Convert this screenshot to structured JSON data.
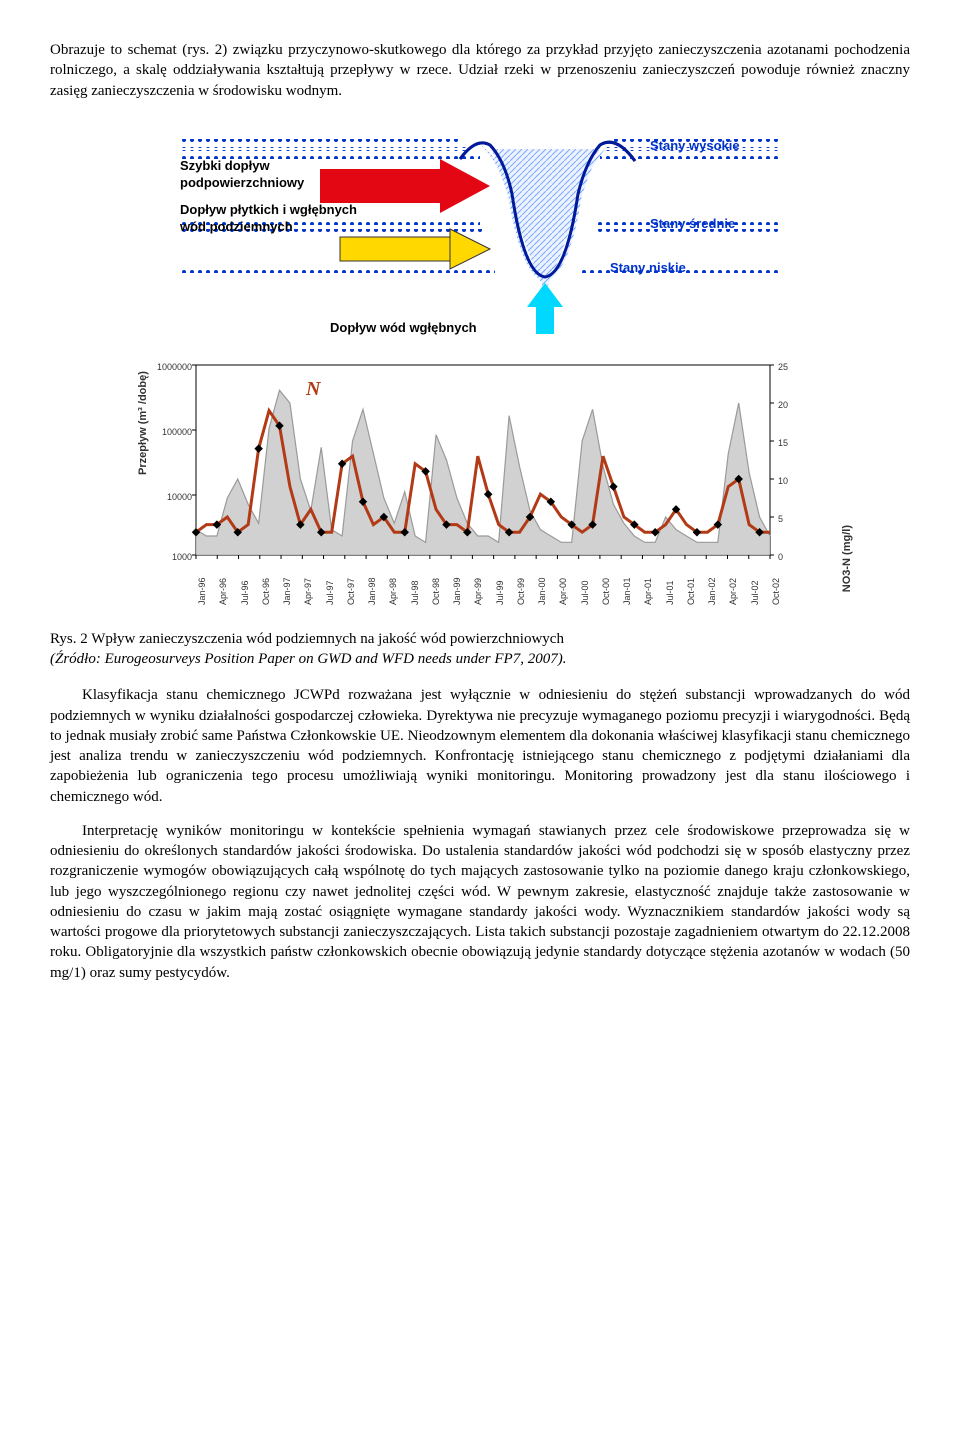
{
  "paragraphs": {
    "p1": "Obrazuje to schemat (rys. 2) związku przyczynowo-skutkowego dla którego za przykład przyjęto zanieczyszczenia azotanami pochodzenia rolniczego, a skalę oddziaływania kształtują przepływy w rzece. Udział rzeki w przenoszeniu zanieczyszczeń powoduje również znaczny zasięg zanieczyszczenia w środowisku wodnym.",
    "caption_main": "Rys. 2 Wpływ zanieczyszczenia wód podziemnych na jakość wód powierzchniowych ",
    "caption_source": "(Źródło: Eurogeosurveys Position Paper on GWD and WFD needs under FP7, 2007).",
    "p2": "Klasyfikacja stanu chemicznego JCWPd rozważana jest wyłącznie w odniesieniu do stężeń substancji wprowadzanych do wód podziemnych w wyniku działalności gospodarczej człowieka. Dyrektywa nie precyzuje wymaganego poziomu precyzji i wiarygodności. Będą to jednak musiały zrobić same Państwa Członkowskie UE. Nieodzownym elementem dla dokonania właściwej klasyfikacji stanu chemicznego jest analiza trendu w zanieczyszczeniu wód podziemnych. Konfrontację istniejącego stanu chemicznego z podjętymi działaniami dla zapobieżenia lub ograniczenia tego procesu umożliwiają wyniki monitoringu. Monitoring prowadzony jest dla stanu ilościowego i chemicznego wód.",
    "p3": "Interpretację wyników monitoringu w kontekście spełnienia wymagań stawianych przez cele środowiskowe przeprowadza się w odniesieniu do określonych standardów jakości środowiska. Do ustalenia standardów jakości wód podchodzi się w sposób elastyczny przez rozgraniczenie wymogów obowiązujących całą wspólnotę do tych mających zastosowanie tylko na poziomie danego kraju członkowskiego, lub jego wyszczególnionego regionu czy nawet jednolitej części wód. W pewnym zakresie, elastyczność znajduje także zastosowanie w odniesieniu do czasu w jakim mają zostać osiągnięte wymagane standardy jakości wody. Wyznacznikiem standardów jakości wody są wartości progowe dla priorytetowych substancji zanieczyszczających. Lista takich substancji pozostaje zagadnieniem otwartym do 22.12.2008 roku. Obligatoryjnie dla wszystkich państw członkowskich obecnie obowiązują jedynie standardy dotyczące stężenia azotanów w wodach (50 mg/1) oraz sumy pestycydów."
  },
  "diagram": {
    "labels": {
      "l1": "Szybki dopływ\npodpowierzchniowy",
      "l2": "Dopływ płytkich i wgłębnych\nwód podziemnych",
      "l3": "Dopływ wód wgłębnych",
      "r1": "Stany wysokie",
      "r2": "Stany średnie",
      "r3": "Stany niskie"
    },
    "colors": {
      "dot": "#0033cc",
      "label_blue": "#0033cc",
      "label_black": "#000000",
      "arrow_red": "#e30613",
      "arrow_yellow": "#ffd800",
      "arrow_yellow_border": "#333333",
      "arrow_cyan": "#00d8ff",
      "curve": "#001a99",
      "hatch": "#7aa7ff",
      "hatch_bg": "#d9e6ff"
    }
  },
  "chart": {
    "type": "dual-axis-line-area",
    "y_left_label": "Przepływ (m³ /dobę)",
    "y_right_label": "NO3-N (mg/l)",
    "series_label": "N",
    "colors": {
      "flow_line": "#9a9a9a",
      "flow_area": "#c9c9c9",
      "n_line": "#b23a16",
      "marker": "#000000",
      "axis": "#000000",
      "bg": "#ffffff"
    },
    "x_ticks": [
      "Jan-96",
      "Apr-96",
      "Jul-96",
      "Oct-96",
      "Jan-97",
      "Apr-97",
      "Jul-97",
      "Oct-97",
      "Jan-98",
      "Apr-98",
      "Jul-98",
      "Oct-98",
      "Jan-99",
      "Apr-99",
      "Jul-99",
      "Oct-99",
      "Jan-00",
      "Apr-00",
      "Jul-00",
      "Oct-00",
      "Jan-01",
      "Apr-01",
      "Jul-01",
      "Oct-01",
      "Jan-02",
      "Apr-02",
      "Jul-02",
      "Oct-02"
    ],
    "y_left_ticks": [
      "1000",
      "10000",
      "100000",
      "1000000"
    ],
    "y_left_positions": [
      200,
      140,
      75,
      10
    ],
    "y_right_ticks": [
      "0",
      "5",
      "10",
      "15",
      "20",
      "25"
    ],
    "y_right_positions": [
      200,
      162,
      124,
      86,
      48,
      10
    ],
    "n_values": [
      3,
      4,
      4,
      5,
      3,
      4,
      14,
      19,
      17,
      9,
      4,
      6,
      3,
      3,
      12,
      13,
      7,
      4,
      5,
      3,
      3,
      12,
      11,
      6,
      4,
      4,
      3,
      13,
      8,
      4,
      3,
      3,
      5,
      8,
      7,
      5,
      4,
      3,
      4,
      13,
      9,
      5,
      4,
      3,
      3,
      4,
      6,
      4,
      3,
      3,
      4,
      9,
      10,
      4,
      3,
      3
    ],
    "flow_log_values": [
      3.4,
      3.3,
      3.3,
      3.9,
      4.2,
      3.8,
      3.5,
      5.0,
      5.6,
      5.4,
      4.2,
      3.7,
      4.7,
      3.4,
      3.3,
      4.8,
      5.3,
      4.6,
      3.9,
      3.5,
      4.0,
      3.3,
      3.2,
      4.9,
      4.5,
      3.9,
      3.5,
      3.3,
      3.3,
      3.2,
      5.2,
      4.4,
      3.7,
      3.4,
      3.3,
      3.2,
      3.2,
      4.8,
      5.3,
      4.4,
      3.8,
      3.5,
      3.3,
      3.2,
      3.2,
      3.6,
      3.4,
      3.3,
      3.2,
      3.2,
      3.2,
      4.6,
      5.4,
      4.3,
      3.6,
      3.3
    ],
    "line_width_n": 3,
    "line_width_flow": 1.2,
    "marker_size": 3
  }
}
